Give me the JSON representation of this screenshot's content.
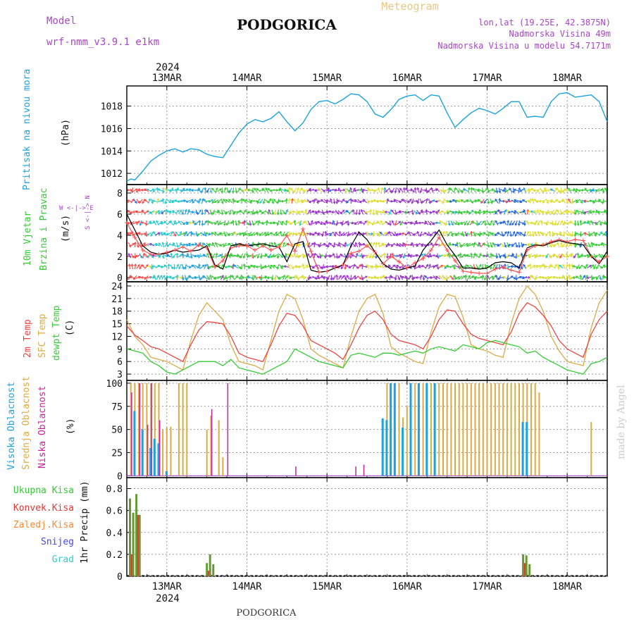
{
  "header": {
    "model_label": "Model",
    "model_name": "wrf-nmm_v3.9.1 e1km",
    "city": "PODGORICA",
    "meteogram": "Meteogram",
    "lonlat": "lon,lat (19.25E, 42.3875N)",
    "elevation": "Nadmorska Visina 49m",
    "model_elevation": "Nadmorska Visina u modelu 54.7171m",
    "footer_city": "PODGORICA",
    "watermark": "made by Angel"
  },
  "colors": {
    "pressure": "#1aa3e0",
    "wind_speed": "#000000",
    "gust": "#ff5050",
    "t2m": "#ee4444",
    "tsfc": "#ddaa44",
    "dewpt": "#33cc33",
    "cloud_high": "#1aa3e0",
    "cloud_mid": "#ddaa44",
    "cloud_low": "#cc2299",
    "precip_total": "#669933",
    "precip_conv": "#ee3333",
    "precip_strat": "#ff8833",
    "snow": "#4444ee",
    "graupel": "#33cccc",
    "wind_label": "#33cc33",
    "wind_legend": "#aa44cc"
  },
  "time_axis": {
    "year": "2024",
    "days": [
      "13MAR",
      "14MAR",
      "15MAR",
      "16MAR",
      "17MAR",
      "18MAR"
    ]
  },
  "chart_data": [
    {
      "type": "line",
      "id": "pressure",
      "ylabel_1": "Pritisak na nivou mora",
      "ylabel_2": "(hPa)",
      "yticks": [
        1012,
        1014,
        1016,
        1018
      ],
      "ylim": [
        1011,
        1019.8
      ],
      "x": [
        12.5,
        12.55,
        12.6,
        12.7,
        12.8,
        12.9,
        13.0,
        13.1,
        13.2,
        13.3,
        13.4,
        13.5,
        13.6,
        13.7,
        13.8,
        13.9,
        14.0,
        14.1,
        14.2,
        14.3,
        14.4,
        14.5,
        14.6,
        14.7,
        14.8,
        14.9,
        15.0,
        15.1,
        15.2,
        15.3,
        15.4,
        15.5,
        15.6,
        15.7,
        15.8,
        15.9,
        16.0,
        16.1,
        16.2,
        16.3,
        16.4,
        16.5,
        16.6,
        16.7,
        16.8,
        16.9,
        17.0,
        17.1,
        17.2,
        17.3,
        17.4,
        17.5,
        17.6,
        17.7,
        17.8,
        17.9,
        18.0,
        18.1,
        18.2,
        18.3,
        18.4,
        18.5
      ],
      "values": [
        1011.3,
        1011.5,
        1011.4,
        1012.2,
        1013.1,
        1013.6,
        1014.0,
        1014.2,
        1013.9,
        1014.2,
        1014.1,
        1013.7,
        1013.5,
        1013.4,
        1014.5,
        1015.6,
        1016.4,
        1016.8,
        1016.6,
        1016.9,
        1017.5,
        1016.6,
        1015.8,
        1016.5,
        1017.7,
        1018.4,
        1018.5,
        1018.2,
        1018.6,
        1019.1,
        1019.0,
        1018.4,
        1017.3,
        1017.0,
        1017.7,
        1018.6,
        1018.9,
        1019.0,
        1018.5,
        1019.0,
        1018.9,
        1017.4,
        1016.1,
        1016.8,
        1017.4,
        1017.8,
        1017.6,
        1017.3,
        1017.8,
        1018.4,
        1018.4,
        1017.0,
        1017.1,
        1017.0,
        1018.4,
        1019.1,
        1019.2,
        1018.8,
        1018.9,
        1019.0,
        1018.4,
        1016.6
      ]
    },
    {
      "type": "line",
      "id": "wind",
      "ylabel_1": "10m Vjetar",
      "ylabel_2": "Brzina i Pravac",
      "ylabel_3": "(m/s)",
      "compass": "W <-|-> E",
      "compass_v": "S <-|-> N",
      "yticks": [
        0,
        2,
        4,
        6,
        8
      ],
      "ylim": [
        -0.4,
        8.8
      ],
      "x": [
        12.5,
        12.6,
        12.7,
        12.8,
        12.9,
        13.0,
        13.1,
        13.2,
        13.3,
        13.4,
        13.5,
        13.6,
        13.7,
        13.8,
        13.9,
        14.0,
        14.1,
        14.2,
        14.3,
        14.4,
        14.5,
        14.6,
        14.7,
        14.8,
        14.9,
        15.0,
        15.1,
        15.2,
        15.3,
        15.4,
        15.5,
        15.6,
        15.7,
        15.8,
        15.9,
        16.0,
        16.1,
        16.2,
        16.3,
        16.4,
        16.5,
        16.6,
        16.7,
        16.8,
        16.9,
        17.0,
        17.1,
        17.2,
        17.3,
        17.4,
        17.5,
        17.6,
        17.7,
        17.8,
        17.9,
        18.0,
        18.1,
        18.2,
        18.3,
        18.4,
        18.5
      ],
      "speed": [
        6.0,
        4.5,
        3.0,
        2.4,
        2.2,
        2.3,
        2.6,
        2.4,
        2.5,
        2.6,
        3.0,
        1.2,
        0.8,
        3.0,
        3.2,
        3.0,
        3.1,
        3.2,
        3.0,
        2.9,
        1.5,
        3.2,
        3.4,
        0.7,
        0.5,
        0.6,
        0.9,
        1.2,
        3.0,
        4.3,
        3.6,
        2.4,
        1.3,
        0.8,
        0.7,
        0.9,
        1.1,
        2.6,
        3.5,
        4.5,
        3.1,
        2.1,
        0.9,
        0.9,
        0.8,
        0.9,
        1.4,
        1.5,
        1.4,
        0.9,
        2.8,
        3.1,
        3.0,
        3.3,
        3.5,
        3.3,
        3.2,
        3.1,
        2.0,
        1.3,
        2.5
      ],
      "gust": [
        5.2,
        3.8,
        2.6,
        2.2,
        2.2,
        2.4,
        2.6,
        2.9,
        2.5,
        3.1,
        2.8,
        1.0,
        1.6,
        2.8,
        3.0,
        3.0,
        2.6,
        3.0,
        2.6,
        2.9,
        4.0,
        2.5,
        4.6,
        2.5,
        0.5,
        0.6,
        0.9,
        1.2,
        2.3,
        2.5,
        3.0,
        2.4,
        1.3,
        2.0,
        1.5,
        0.9,
        1.4,
        1.8,
        2.6,
        3.8,
        2.6,
        1.6,
        0.6,
        0.5,
        0.4,
        0.4,
        0.8,
        1.0,
        0.7,
        0.5,
        2.6,
        3.0,
        3.1,
        3.4,
        3.6,
        3.4,
        3.6,
        3.5,
        2.0,
        1.5,
        2.0
      ]
    },
    {
      "type": "line",
      "id": "temperature",
      "ylabel_1": "2m Temp",
      "ylabel_2": "SFC Temp",
      "ylabel_3": "dewpt Temp",
      "ylabel_4": "(C)",
      "yticks": [
        3,
        6,
        9,
        12,
        15,
        18,
        21,
        24
      ],
      "ylim": [
        1.5,
        25
      ],
      "x": [
        12.5,
        12.6,
        12.7,
        12.8,
        12.9,
        13.0,
        13.1,
        13.2,
        13.3,
        13.4,
        13.5,
        13.6,
        13.7,
        13.8,
        13.9,
        14.0,
        14.1,
        14.2,
        14.3,
        14.4,
        14.5,
        14.6,
        14.7,
        14.8,
        14.9,
        15.0,
        15.1,
        15.2,
        15.3,
        15.4,
        15.5,
        15.6,
        15.7,
        15.8,
        15.9,
        16.0,
        16.1,
        16.2,
        16.3,
        16.4,
        16.5,
        16.6,
        16.7,
        16.8,
        16.9,
        17.0,
        17.1,
        17.2,
        17.3,
        17.4,
        17.5,
        17.6,
        17.7,
        17.8,
        17.9,
        18.0,
        18.1,
        18.2,
        18.3,
        18.4,
        18.5
      ],
      "t2m": [
        14.5,
        12.3,
        11.0,
        9.5,
        9.0,
        8.0,
        7.0,
        6.0,
        10.0,
        13.5,
        15.5,
        15.3,
        15.0,
        12.0,
        8.0,
        7.0,
        6.5,
        6.0,
        10.0,
        14.5,
        17.5,
        17.0,
        14.5,
        11.0,
        10.0,
        9.0,
        8.0,
        6.5,
        10.0,
        14.0,
        17.0,
        18.0,
        16.0,
        12.5,
        11.0,
        10.5,
        10.0,
        9.0,
        12.0,
        16.0,
        18.3,
        18.0,
        15.0,
        12.5,
        11.5,
        11.0,
        10.5,
        10.0,
        13.0,
        17.5,
        20.0,
        19.0,
        17.0,
        14.5,
        11.0,
        9.0,
        8.0,
        7.0,
        12.5,
        16.0,
        18.0
      ],
      "tsfc": [
        16.0,
        12.0,
        10.0,
        7.0,
        6.5,
        6.0,
        5.0,
        4.0,
        11.0,
        17.0,
        20.0,
        18.0,
        16.0,
        10.0,
        6.0,
        5.5,
        5.0,
        4.0,
        11.0,
        18.0,
        22.0,
        21.0,
        16.0,
        9.0,
        7.5,
        6.5,
        5.5,
        4.5,
        12.0,
        18.0,
        21.0,
        22.0,
        17.5,
        9.5,
        8.0,
        7.0,
        6.0,
        5.5,
        13.0,
        19.0,
        22.0,
        21.5,
        16.5,
        10.0,
        9.0,
        8.5,
        7.5,
        7.0,
        15.0,
        21.0,
        24.0,
        22.0,
        18.0,
        12.0,
        8.5,
        6.0,
        5.5,
        5.0,
        14.0,
        20.0,
        23.0
      ],
      "dewpt": [
        9.0,
        8.5,
        8.0,
        6.0,
        5.0,
        3.5,
        3.0,
        4.0,
        5.0,
        6.0,
        6.0,
        6.0,
        5.0,
        6.5,
        4.5,
        4.0,
        3.5,
        3.0,
        4.0,
        5.0,
        6.0,
        9.0,
        8.0,
        7.0,
        6.0,
        5.5,
        5.0,
        4.5,
        7.5,
        8.0,
        7.5,
        7.0,
        8.0,
        8.0,
        7.5,
        8.0,
        8.5,
        8.0,
        9.0,
        9.5,
        9.0,
        8.5,
        10.0,
        9.5,
        9.0,
        10.5,
        11.0,
        10.5,
        10.0,
        9.5,
        8.0,
        8.5,
        7.0,
        6.0,
        5.0,
        4.0,
        3.5,
        3.0,
        5.5,
        6.0,
        7.0
      ]
    },
    {
      "type": "bar",
      "id": "clouds",
      "ylabel_1": "Visoka Oblacnost",
      "ylabel_2": "Srednja Oblacnost",
      "ylabel_3": "Niska Oblacnost",
      "ylabel_4": "(%)",
      "yticks": [
        0,
        25,
        50,
        75,
        100
      ],
      "ylim": [
        -2,
        103
      ],
      "mid": [
        [
          12.55,
          100
        ],
        [
          12.6,
          100
        ],
        [
          12.65,
          100
        ],
        [
          12.7,
          100
        ],
        [
          12.75,
          100
        ],
        [
          12.8,
          100
        ],
        [
          12.85,
          100
        ],
        [
          12.9,
          100
        ],
        [
          12.95,
          50
        ],
        [
          13.0,
          52
        ],
        [
          13.05,
          53
        ],
        [
          13.15,
          100
        ],
        [
          13.2,
          100
        ],
        [
          13.25,
          100
        ],
        [
          13.5,
          50
        ],
        [
          13.55,
          65
        ],
        [
          13.65,
          60
        ],
        [
          13.7,
          20
        ],
        [
          15.75,
          100
        ],
        [
          15.8,
          60
        ],
        [
          15.85,
          40
        ],
        [
          15.9,
          100
        ],
        [
          15.95,
          63
        ],
        [
          16.0,
          75
        ],
        [
          16.05,
          100
        ],
        [
          16.1,
          100
        ],
        [
          16.15,
          100
        ],
        [
          16.2,
          100
        ],
        [
          16.25,
          100
        ],
        [
          16.3,
          100
        ],
        [
          16.35,
          100
        ],
        [
          16.4,
          100
        ],
        [
          16.45,
          100
        ],
        [
          16.5,
          100
        ],
        [
          16.55,
          100
        ],
        [
          16.6,
          100
        ],
        [
          16.65,
          100
        ],
        [
          16.7,
          100
        ],
        [
          16.75,
          100
        ],
        [
          16.8,
          100
        ],
        [
          16.85,
          100
        ],
        [
          16.9,
          100
        ],
        [
          16.95,
          100
        ],
        [
          17.0,
          100
        ],
        [
          17.05,
          100
        ],
        [
          17.1,
          100
        ],
        [
          17.15,
          100
        ],
        [
          17.2,
          100
        ],
        [
          17.25,
          100
        ],
        [
          17.3,
          100
        ],
        [
          17.35,
          100
        ],
        [
          17.4,
          100
        ],
        [
          17.45,
          100
        ],
        [
          17.5,
          100
        ],
        [
          17.55,
          100
        ],
        [
          17.6,
          100
        ],
        [
          17.65,
          90
        ],
        [
          18.3,
          58
        ]
      ],
      "high": [
        [
          12.6,
          70
        ],
        [
          12.7,
          50
        ],
        [
          12.8,
          30
        ],
        [
          12.85,
          40
        ],
        [
          12.9,
          35
        ],
        [
          13.0,
          5
        ],
        [
          15.7,
          62
        ],
        [
          15.75,
          60
        ],
        [
          15.8,
          100
        ],
        [
          15.85,
          100
        ],
        [
          15.95,
          52
        ],
        [
          16.05,
          100
        ],
        [
          16.15,
          100
        ],
        [
          16.25,
          100
        ],
        [
          16.35,
          100
        ],
        [
          17.45,
          58
        ],
        [
          17.5,
          58
        ]
      ],
      "low": [
        [
          12.55,
          90
        ],
        [
          12.65,
          100
        ],
        [
          12.75,
          55
        ],
        [
          12.8,
          100
        ],
        [
          12.9,
          60
        ],
        [
          13.55,
          72
        ],
        [
          13.75,
          100
        ],
        [
          14.6,
          10
        ],
        [
          15.35,
          10
        ],
        [
          15.45,
          12
        ]
      ]
    },
    {
      "type": "bar",
      "id": "precip",
      "ylabel_1": "Ukupna Kisa",
      "ylabel_2": "Konvek.Kisa",
      "ylabel_3": "Zaledj.Kisa",
      "ylabel_4": "Snijeg",
      "ylabel_5": "Grad",
      "ylabel_6": "1hr Precip (mm)",
      "yticks": [
        0,
        0.2,
        0.4,
        0.6,
        0.8
      ],
      "ylim": [
        0,
        0.9
      ],
      "total": [
        [
          12.54,
          0.71
        ],
        [
          12.58,
          0.58
        ],
        [
          12.62,
          0.75
        ],
        [
          12.66,
          0.56
        ],
        [
          13.5,
          0.12
        ],
        [
          13.54,
          0.2
        ],
        [
          13.58,
          0.11
        ],
        [
          17.45,
          0.2
        ],
        [
          17.49,
          0.19
        ],
        [
          17.53,
          0.11
        ]
      ],
      "conv": [
        [
          12.56,
          0.2
        ],
        [
          12.64,
          0.56
        ],
        [
          13.52,
          0.05
        ],
        [
          17.47,
          0.12
        ]
      ]
    }
  ]
}
